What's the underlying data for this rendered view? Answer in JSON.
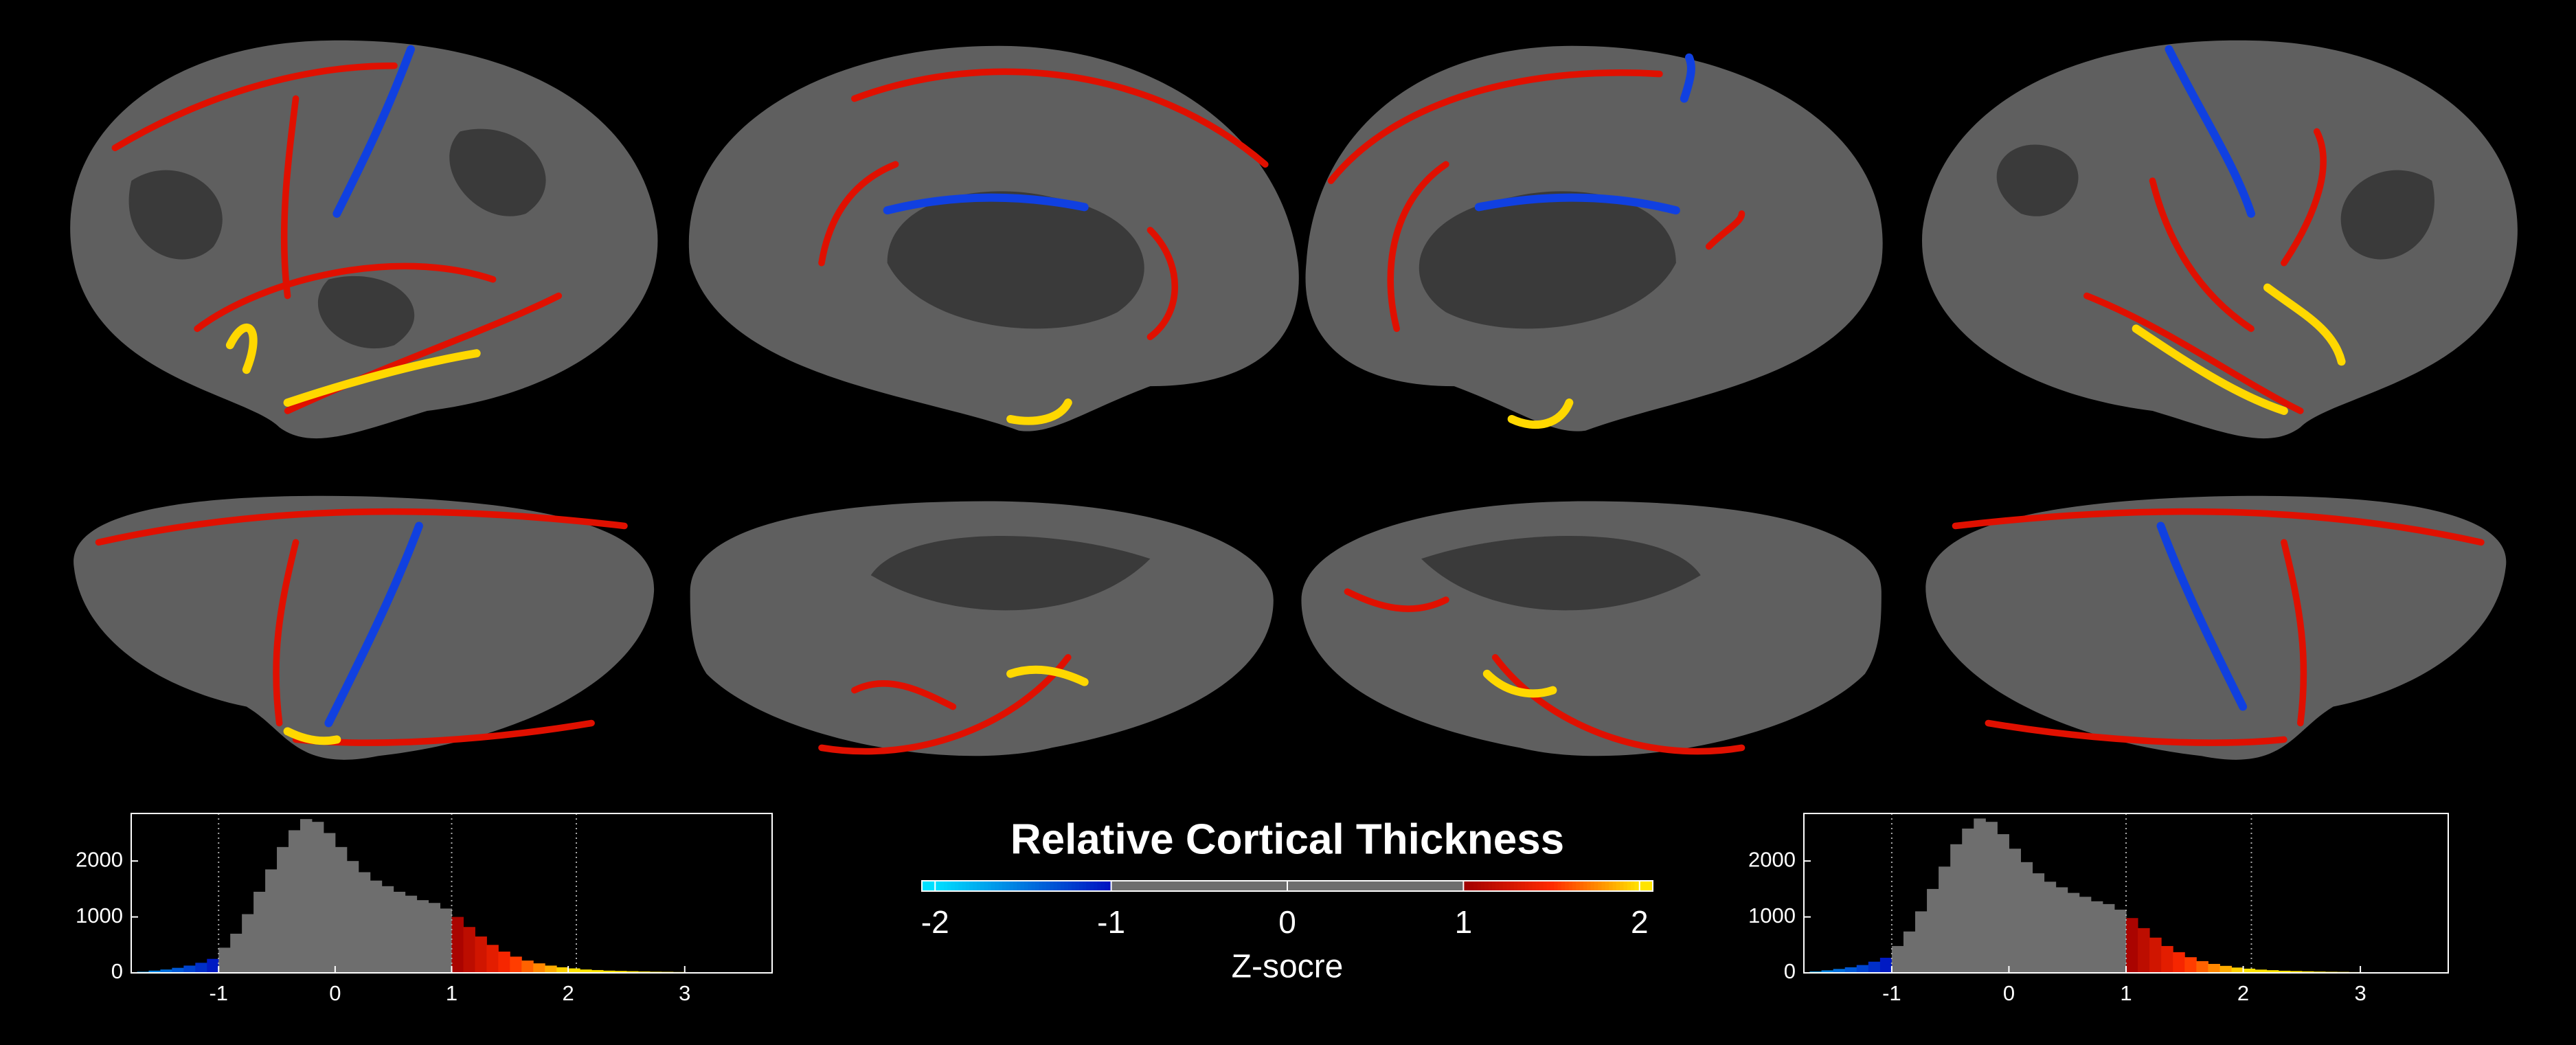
{
  "chart_data": [
    {
      "type": "histogram",
      "bins": [
        -1.7,
        -1.6,
        -1.5,
        -1.4,
        -1.3,
        -1.2,
        -1.1,
        -1.0,
        -0.9,
        -0.8,
        -0.7,
        -0.6,
        -0.5,
        -0.4,
        -0.3,
        -0.2,
        -0.1,
        0.0,
        0.1,
        0.2,
        0.3,
        0.4,
        0.5,
        0.6,
        0.7,
        0.8,
        0.9,
        1.0,
        1.1,
        1.2,
        1.3,
        1.4,
        1.5,
        1.6,
        1.7,
        1.8,
        1.9,
        2.0,
        2.1,
        2.2,
        2.3,
        2.4,
        2.5,
        2.6,
        2.7,
        2.8,
        2.9,
        3.0,
        3.1,
        3.2,
        3.3,
        3.4,
        3.5,
        3.6,
        3.7
      ],
      "counts": [
        20,
        40,
        60,
        90,
        130,
        180,
        250,
        450,
        700,
        1050,
        1450,
        1850,
        2250,
        2550,
        2750,
        2700,
        2500,
        2250,
        2000,
        1800,
        1650,
        1550,
        1450,
        1380,
        1300,
        1250,
        1150,
        1000,
        820,
        650,
        500,
        380,
        290,
        220,
        170,
        130,
        100,
        80,
        60,
        50,
        40,
        35,
        30,
        25,
        20,
        18,
        15,
        12,
        10,
        8,
        6,
        5,
        4,
        3
      ],
      "xlim": [
        -1.75,
        3.75
      ],
      "ylim": [
        0,
        2850
      ],
      "xticks": [
        -1,
        0,
        1,
        2,
        3
      ],
      "yticks": [
        0,
        1000,
        2000
      ],
      "vlines": [
        -1,
        1,
        2.07
      ]
    },
    {
      "type": "colorbar",
      "title": "Relative Cortical Thickness",
      "xlabel": "Z-socre",
      "xlim": [
        -2.075,
        2.075
      ],
      "xticks": [
        -2,
        -1,
        0,
        1,
        2
      ],
      "colormap": {
        "negative": [
          [
            -2,
            "#00e0ff"
          ],
          [
            -1,
            "#0010c0"
          ]
        ],
        "neutral": "#6e6e6e",
        "neutral_range": [
          -1,
          1
        ],
        "positive": [
          [
            1,
            "#a00000"
          ],
          [
            1.5,
            "#ff2a00"
          ],
          [
            2,
            "#ffe400"
          ]
        ]
      }
    },
    {
      "type": "histogram",
      "bins": [
        -1.7,
        -1.6,
        -1.5,
        -1.4,
        -1.3,
        -1.2,
        -1.1,
        -1.0,
        -0.9,
        -0.8,
        -0.7,
        -0.6,
        -0.5,
        -0.4,
        -0.3,
        -0.2,
        -0.1,
        0.0,
        0.1,
        0.2,
        0.3,
        0.4,
        0.5,
        0.6,
        0.7,
        0.8,
        0.9,
        1.0,
        1.1,
        1.2,
        1.3,
        1.4,
        1.5,
        1.6,
        1.7,
        1.8,
        1.9,
        2.0,
        2.1,
        2.2,
        2.3,
        2.4,
        2.5,
        2.6,
        2.7,
        2.8,
        2.9,
        3.0,
        3.1,
        3.2,
        3.3,
        3.4,
        3.5,
        3.6,
        3.7
      ],
      "counts": [
        25,
        45,
        70,
        100,
        140,
        200,
        270,
        480,
        740,
        1100,
        1500,
        1900,
        2300,
        2580,
        2760,
        2700,
        2480,
        2220,
        1980,
        1780,
        1630,
        1530,
        1430,
        1360,
        1280,
        1230,
        1130,
        980,
        800,
        630,
        480,
        370,
        280,
        210,
        160,
        125,
        95,
        75,
        58,
        48,
        38,
        33,
        28,
        23,
        19,
        17,
        14,
        11,
        9,
        7,
        6,
        5,
        4,
        3
      ],
      "xlim": [
        -1.75,
        3.75
      ],
      "ylim": [
        0,
        2850
      ],
      "xticks": [
        -1,
        0,
        1,
        2,
        3
      ],
      "yticks": [
        0,
        1000,
        2000
      ],
      "vlines": [
        -1,
        1,
        2.07
      ]
    }
  ]
}
